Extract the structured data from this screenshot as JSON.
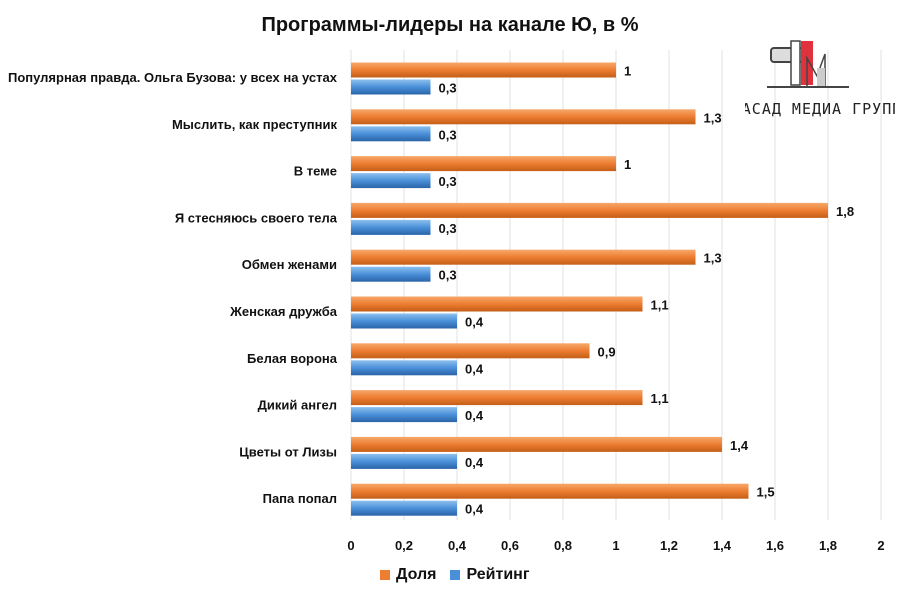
{
  "chart_data": {
    "type": "bar",
    "orientation": "horizontal",
    "title": "Программы-лидеры на канале Ю, в %",
    "categories": [
      "Популярная правда. Ольга Бузова: у всех на устах",
      "Мыслить, как преступник",
      "В теме",
      "Я стесняюсь своего тела",
      "Обмен женами",
      "Женская дружба",
      "Белая ворона",
      "Дикий ангел",
      "Цветы от Лизы",
      "Папа попал"
    ],
    "series": [
      {
        "name": "Доля",
        "color": "#ED7D31",
        "values": [
          1,
          1.3,
          1,
          1.8,
          1.3,
          1.1,
          0.9,
          1.1,
          1.4,
          1.5
        ],
        "labels": [
          "1",
          "1,3",
          "1",
          "1,8",
          "1,3",
          "1,1",
          "0,9",
          "1,1",
          "1,4",
          "1,5"
        ]
      },
      {
        "name": "Рейтинг",
        "color": "#4A90D9",
        "values": [
          0.3,
          0.3,
          0.3,
          0.3,
          0.3,
          0.4,
          0.4,
          0.4,
          0.4,
          0.4
        ],
        "labels": [
          "0,3",
          "0,3",
          "0,3",
          "0,3",
          "0,3",
          "0,4",
          "0,4",
          "0,4",
          "0,4",
          "0,4"
        ]
      }
    ],
    "xlim": [
      0,
      2
    ],
    "xticks": [
      "0",
      "0,2",
      "0,4",
      "0,6",
      "0,8",
      "1",
      "1,2",
      "1,4",
      "1,6",
      "1,8",
      "2"
    ],
    "grid": true,
    "legend_position": "bottom"
  },
  "logo": {
    "text": "ФАСАД МЕДИА ГРУПП"
  }
}
